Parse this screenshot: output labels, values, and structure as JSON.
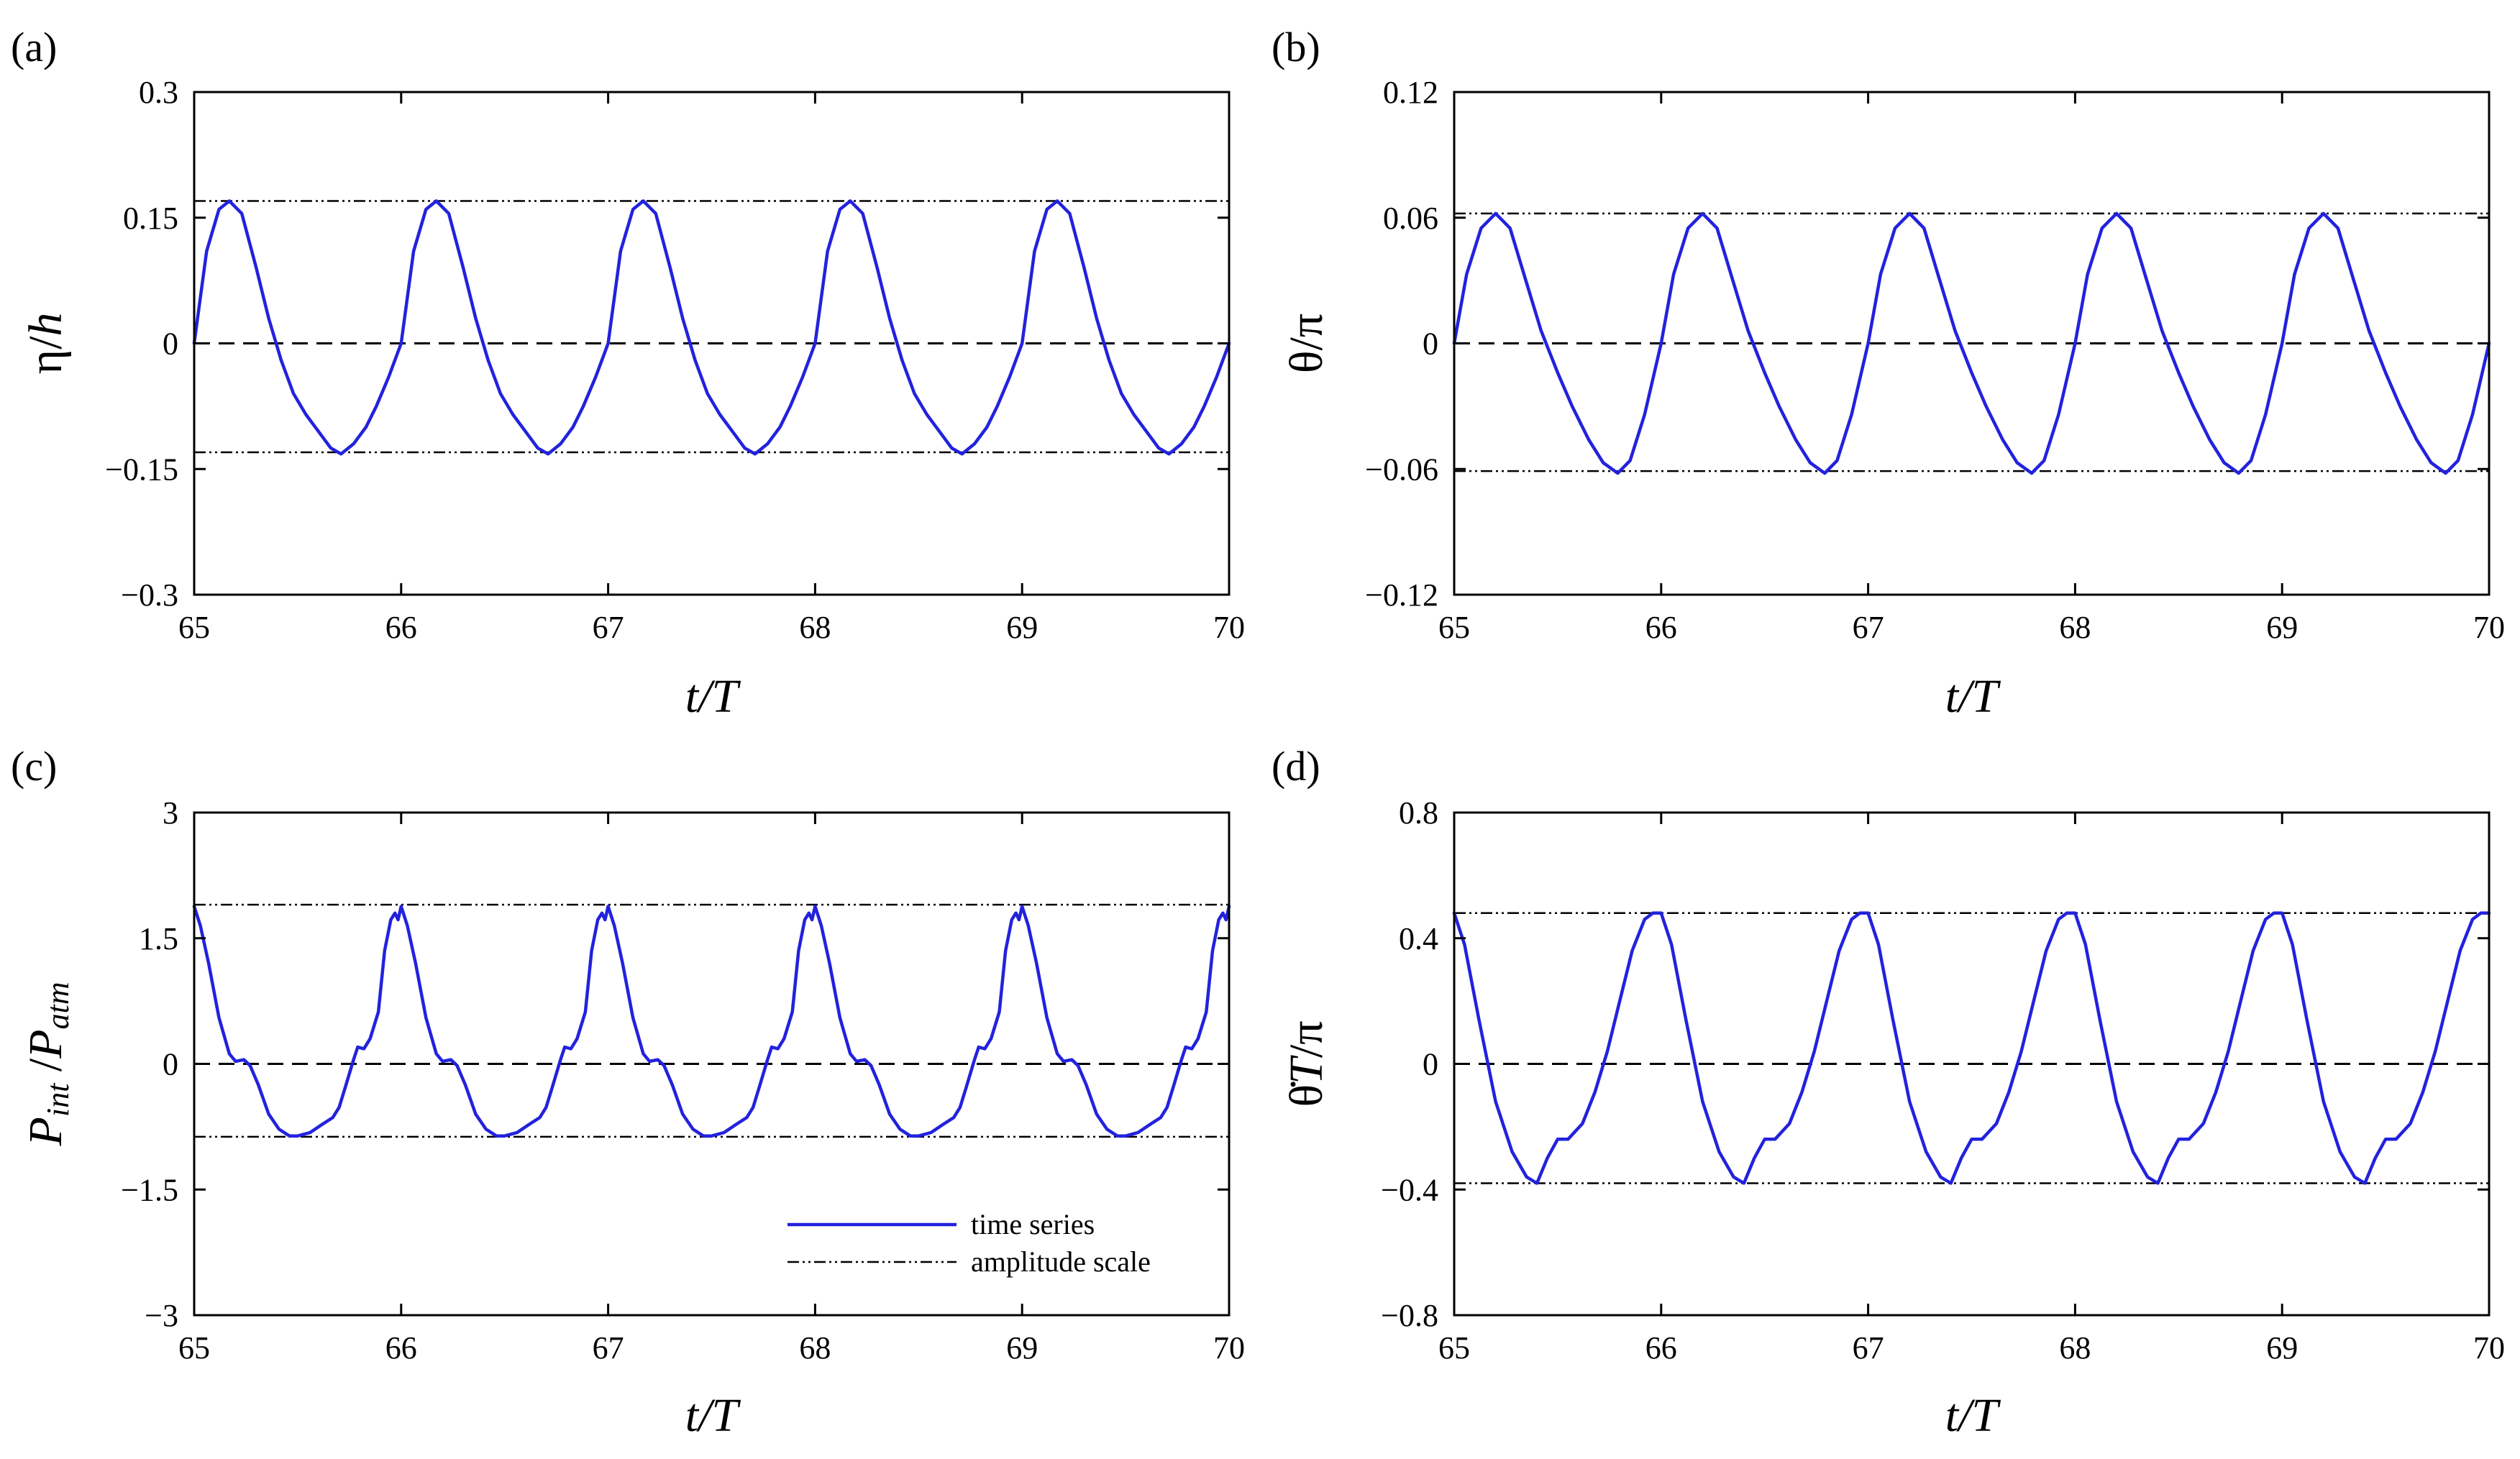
{
  "figure": {
    "panels": [
      {
        "id": "a",
        "panel_label": "(a)",
        "ylabel_html": "η/<tspan font-style='italic'>h</tspan>",
        "ylabel_text": "η/h",
        "xlabel": "t/T"
      },
      {
        "id": "b",
        "panel_label": "(b)",
        "ylabel_html": "θ/π",
        "ylabel_text": "θ/π",
        "xlabel": "t/T"
      },
      {
        "id": "c",
        "panel_label": "(c)",
        "ylabel_html": "<tspan font-style='italic'>P</tspan><tspan font-style='italic' font-size='44' dy='10'>int</tspan><tspan dy='-10'> /</tspan><tspan font-style='italic'>P</tspan><tspan font-style='italic' font-size='44' dy='10'>atm</tspan>",
        "ylabel_text": "P int /P atm",
        "xlabel": "t/T"
      },
      {
        "id": "d",
        "panel_label": "(d)",
        "ylabel_html": "θ̇<tspan font-style='italic'>T</tspan>/π",
        "ylabel_text": "θ̇T/π",
        "xlabel": "t/T"
      }
    ],
    "legend": {
      "entries": [
        {
          "label": "time series",
          "style": "solid",
          "color": "#2222dd"
        },
        {
          "label": "amplitude scale",
          "style": "dash-dot-dot",
          "color": "#000000"
        }
      ]
    },
    "colors": {
      "series": "#2222dd",
      "reference": "#000000"
    }
  },
  "chart_data": [
    {
      "type": "line",
      "panel": "a",
      "xlabel": "t/T",
      "ylabel": "η/h",
      "xlim": [
        65,
        70
      ],
      "ylim": [
        -0.3,
        0.3
      ],
      "xticks": [
        65,
        66,
        67,
        68,
        69,
        70
      ],
      "xtick_labels": [
        "65",
        "66",
        "67",
        "68",
        "69",
        "70"
      ],
      "yticks": [
        -0.3,
        -0.15,
        0,
        0.15,
        0.3
      ],
      "ytick_labels": [
        "−0.3",
        "−0.15",
        "0",
        "0.15",
        "0.3"
      ],
      "zero_line": 0,
      "amplitude_lines": [
        0.17,
        -0.13
      ],
      "series": [
        {
          "name": "time series",
          "period": 1,
          "cycle_points": [
            [
              0.0,
              0.0
            ],
            [
              0.06,
              0.11
            ],
            [
              0.12,
              0.16
            ],
            [
              0.17,
              0.17
            ],
            [
              0.23,
              0.155
            ],
            [
              0.3,
              0.09
            ],
            [
              0.36,
              0.03
            ],
            [
              0.42,
              -0.02
            ],
            [
              0.48,
              -0.06
            ],
            [
              0.54,
              -0.085
            ],
            [
              0.6,
              -0.105
            ],
            [
              0.66,
              -0.125
            ],
            [
              0.71,
              -0.132
            ],
            [
              0.77,
              -0.12
            ],
            [
              0.83,
              -0.1
            ],
            [
              0.88,
              -0.075
            ],
            [
              0.94,
              -0.04
            ],
            [
              1.0,
              0.0
            ]
          ]
        }
      ]
    },
    {
      "type": "line",
      "panel": "b",
      "xlabel": "t/T",
      "ylabel": "θ/π",
      "xlim": [
        65,
        70
      ],
      "ylim": [
        -0.12,
        0.12
      ],
      "xticks": [
        65,
        66,
        67,
        68,
        69,
        70
      ],
      "xtick_labels": [
        "65",
        "66",
        "67",
        "68",
        "69",
        "70"
      ],
      "yticks": [
        -0.12,
        -0.06,
        0,
        0.06,
        0.12
      ],
      "ytick_labels": [
        "−0.12",
        "−0.06",
        "0",
        "0.06",
        "0.12"
      ],
      "zero_line": 0,
      "amplitude_lines": [
        0.062,
        -0.061
      ],
      "series": [
        {
          "name": "time series",
          "period": 1,
          "cycle_points": [
            [
              0.0,
              0.0
            ],
            [
              0.06,
              0.033
            ],
            [
              0.13,
              0.055
            ],
            [
              0.2,
              0.062
            ],
            [
              0.27,
              0.055
            ],
            [
              0.34,
              0.032
            ],
            [
              0.42,
              0.006
            ],
            [
              0.5,
              -0.014
            ],
            [
              0.57,
              -0.03
            ],
            [
              0.65,
              -0.046
            ],
            [
              0.72,
              -0.057
            ],
            [
              0.79,
              -0.062
            ],
            [
              0.85,
              -0.056
            ],
            [
              0.92,
              -0.034
            ],
            [
              1.0,
              0.0
            ]
          ]
        }
      ]
    },
    {
      "type": "line",
      "panel": "c",
      "xlabel": "t/T",
      "ylabel": "Pint/Patm",
      "xlim": [
        65,
        70
      ],
      "ylim": [
        -3,
        3
      ],
      "xticks": [
        65,
        66,
        67,
        68,
        69,
        70
      ],
      "xtick_labels": [
        "65",
        "66",
        "67",
        "68",
        "69",
        "70"
      ],
      "yticks": [
        -3,
        -1.5,
        0,
        1.5,
        3
      ],
      "ytick_labels": [
        "−3",
        "−1.5",
        "0",
        "1.5",
        "3"
      ],
      "zero_line": 0,
      "amplitude_lines": [
        1.9,
        -0.87
      ],
      "series": [
        {
          "name": "time series",
          "period": 1,
          "cycle_points": [
            [
              0.0,
              1.88
            ],
            [
              0.03,
              1.65
            ],
            [
              0.07,
              1.2
            ],
            [
              0.12,
              0.55
            ],
            [
              0.17,
              0.12
            ],
            [
              0.2,
              0.03
            ],
            [
              0.24,
              0.05
            ],
            [
              0.27,
              -0.02
            ],
            [
              0.31,
              -0.25
            ],
            [
              0.36,
              -0.6
            ],
            [
              0.41,
              -0.78
            ],
            [
              0.46,
              -0.86
            ],
            [
              0.5,
              -0.86
            ],
            [
              0.56,
              -0.82
            ],
            [
              0.62,
              -0.72
            ],
            [
              0.67,
              -0.64
            ],
            [
              0.7,
              -0.52
            ],
            [
              0.73,
              -0.28
            ],
            [
              0.77,
              0.05
            ],
            [
              0.79,
              0.2
            ],
            [
              0.82,
              0.18
            ],
            [
              0.85,
              0.3
            ],
            [
              0.89,
              0.62
            ],
            [
              0.92,
              1.35
            ],
            [
              0.95,
              1.72
            ],
            [
              0.97,
              1.8
            ],
            [
              0.985,
              1.72
            ],
            [
              1.0,
              1.88
            ]
          ]
        }
      ]
    },
    {
      "type": "line",
      "panel": "d",
      "xlabel": "t/T",
      "ylabel": "θ̇T/π",
      "xlim": [
        65,
        70
      ],
      "ylim": [
        -0.8,
        0.8
      ],
      "xticks": [
        65,
        66,
        67,
        68,
        69,
        70
      ],
      "xtick_labels": [
        "65",
        "66",
        "67",
        "68",
        "69",
        "70"
      ],
      "yticks": [
        -0.8,
        -0.4,
        0,
        0.4,
        0.8
      ],
      "ytick_labels": [
        "−0.8",
        "−0.4",
        "0",
        "0.4",
        "0.8"
      ],
      "zero_line": 0,
      "amplitude_lines": [
        0.48,
        -0.38
      ],
      "series": [
        {
          "name": "time series",
          "period": 1,
          "cycle_points": [
            [
              0.0,
              0.48
            ],
            [
              0.05,
              0.38
            ],
            [
              0.12,
              0.14
            ],
            [
              0.2,
              -0.12
            ],
            [
              0.28,
              -0.28
            ],
            [
              0.35,
              -0.36
            ],
            [
              0.4,
              -0.38
            ],
            [
              0.45,
              -0.3
            ],
            [
              0.5,
              -0.24
            ],
            [
              0.55,
              -0.24
            ],
            [
              0.62,
              -0.19
            ],
            [
              0.68,
              -0.09
            ],
            [
              0.74,
              0.04
            ],
            [
              0.8,
              0.2
            ],
            [
              0.86,
              0.36
            ],
            [
              0.92,
              0.46
            ],
            [
              0.96,
              0.48
            ],
            [
              1.0,
              0.48
            ]
          ]
        }
      ]
    }
  ]
}
